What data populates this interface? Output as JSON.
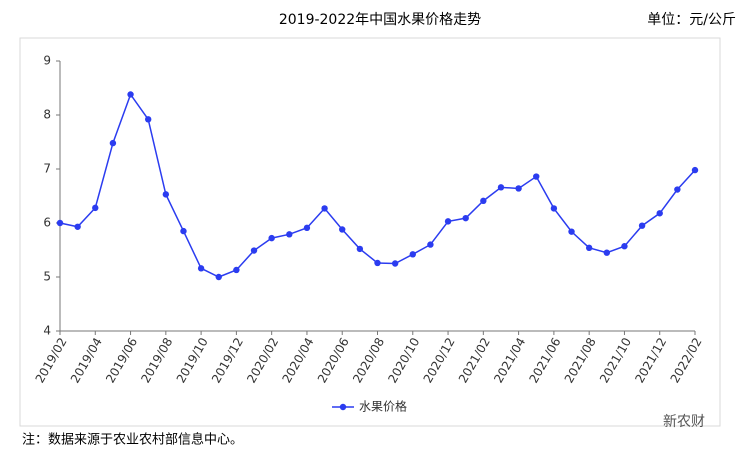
{
  "chart_data": {
    "type": "line",
    "title": "2019-2022年中国水果价格走势",
    "unit": "单位：元/公斤",
    "note": "注：数据来源于农业农村部信息中心。",
    "watermark": "新农财",
    "categories": [
      "2019/02",
      null,
      "2019/04",
      null,
      "2019/06",
      null,
      "2019/08",
      null,
      "2019/10",
      null,
      "2019/12",
      null,
      "2020/02",
      null,
      "2020/04",
      null,
      "2020/06",
      null,
      "2020/08",
      null,
      "2020/10",
      null,
      "2020/12",
      null,
      "2021/02",
      null,
      "2021/04",
      null,
      "2021/06",
      null,
      "2021/08",
      null,
      "2021/10",
      null,
      "2021/12",
      null,
      "2022/02"
    ],
    "series": [
      {
        "name": "水果价格",
        "color": "#2b3cf0",
        "values": [
          6.0,
          5.93,
          6.28,
          7.48,
          8.38,
          7.92,
          6.53,
          5.85,
          5.16,
          5.0,
          5.13,
          5.49,
          5.72,
          5.79,
          5.91,
          6.27,
          5.88,
          5.52,
          5.26,
          5.25,
          5.42,
          5.6,
          6.03,
          6.09,
          6.41,
          6.66,
          6.64,
          6.86,
          6.27,
          5.84,
          5.54,
          5.45,
          5.57,
          5.95,
          6.18,
          6.62,
          6.98
        ]
      }
    ],
    "ylim": [
      4,
      9
    ],
    "yticks": [
      4,
      5,
      6,
      7,
      8,
      9
    ],
    "grid": false,
    "legend": "bottom"
  }
}
